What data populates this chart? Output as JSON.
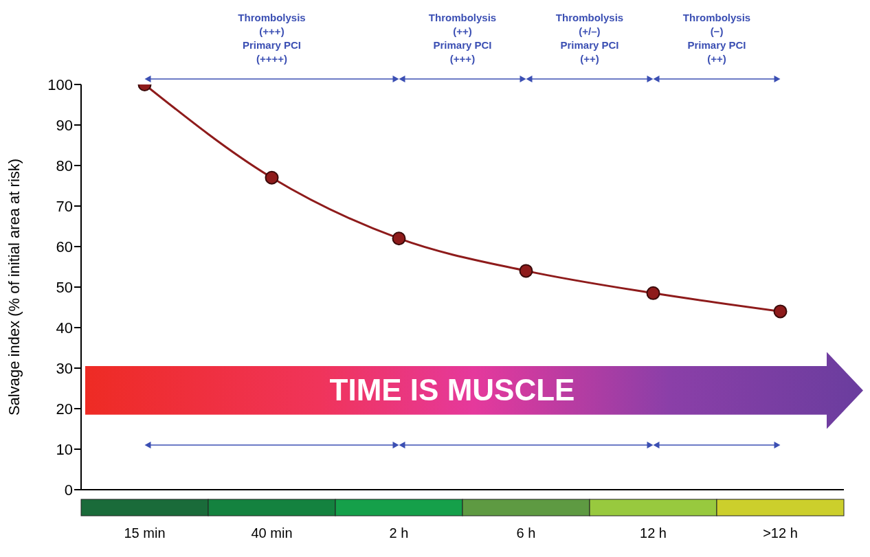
{
  "chart_data": {
    "type": "line",
    "ylabel": "Salvage index (% of initial area at risk)",
    "categories": [
      "15 min",
      "40 min",
      "2 h",
      "6 h",
      "12 h",
      ">12 h"
    ],
    "series": [
      {
        "color": "#8e1b1b",
        "values": [
          100,
          77,
          62,
          54,
          48.5,
          44
        ]
      }
    ],
    "ylim": [
      0,
      100
    ],
    "yticks": [
      0,
      10,
      20,
      30,
      40,
      50,
      60,
      70,
      80,
      90,
      100
    ],
    "grid": false,
    "legend": false,
    "marker": "circle",
    "line_style": "solid",
    "annotations": [
      "Thrombolysis\n(+++)\nPrimary PCI\n(++++)",
      "Thrombolysis\n(++)\nPrimary PCI\n(+++)",
      "Thrombolysis\n(+/–)\nPrimary PCI\n(++)",
      "Thrombolysis\n(−)\nPrimary PCI\n(++)",
      "TIME IS MUSCLE"
    ]
  }
}
